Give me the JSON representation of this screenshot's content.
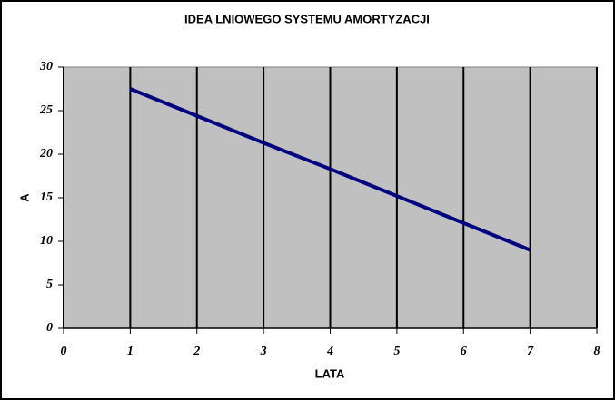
{
  "chart_data": {
    "type": "line",
    "title": "IDEA LNIOWEGO SYSTEMU AMORTYZACJI",
    "xlabel": "LATA",
    "ylabel": "A",
    "x": [
      1,
      2,
      3,
      4,
      5,
      6,
      7
    ],
    "series": [
      {
        "color": "#000080",
        "values": [
          27.5,
          24.4,
          21.3,
          18.3,
          15.2,
          12.1,
          9
        ]
      }
    ],
    "xlim": [
      0,
      8
    ],
    "xticks": [
      0,
      1,
      2,
      3,
      4,
      5,
      6,
      7,
      8
    ],
    "ylim": [
      0,
      30
    ],
    "yticks": [
      0,
      5,
      10,
      15,
      20,
      25,
      30
    ],
    "xgrid": true,
    "plot_background": "#c0c0c0"
  }
}
